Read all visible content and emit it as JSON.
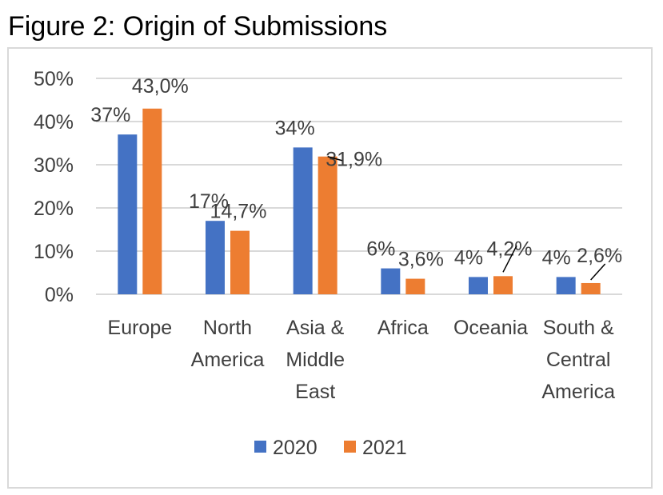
{
  "figure_title": "Figure 2: Origin of Submissions",
  "colors": {
    "2020": "#4472c4",
    "2021": "#ed7d31",
    "grid": "#d9d9d9",
    "text": "#404040"
  },
  "chart_data": {
    "type": "bar",
    "title": "",
    "xlabel": "",
    "ylabel": "",
    "ylim": [
      0,
      50
    ],
    "yticks": [
      "0%",
      "10%",
      "20%",
      "30%",
      "40%",
      "50%"
    ],
    "grid": true,
    "legend_position": "bottom",
    "categories": [
      [
        "Europe"
      ],
      [
        "North",
        "America"
      ],
      [
        "Asia &",
        "Middle",
        "East"
      ],
      [
        "Africa"
      ],
      [
        "Oceania"
      ],
      [
        "South &",
        "Central",
        "America"
      ]
    ],
    "series": [
      {
        "name": "2020",
        "values": [
          37,
          17,
          34,
          6,
          4,
          4
        ],
        "labels": [
          "37%",
          "17%",
          "34%",
          "6%",
          "4%",
          "4%"
        ]
      },
      {
        "name": "2021",
        "values": [
          43.0,
          14.7,
          31.9,
          3.6,
          4.2,
          2.6
        ],
        "labels": [
          "43,0%",
          "14,7%",
          "31,9%",
          "3,6%",
          "4,2%",
          "2,6%"
        ]
      }
    ]
  }
}
